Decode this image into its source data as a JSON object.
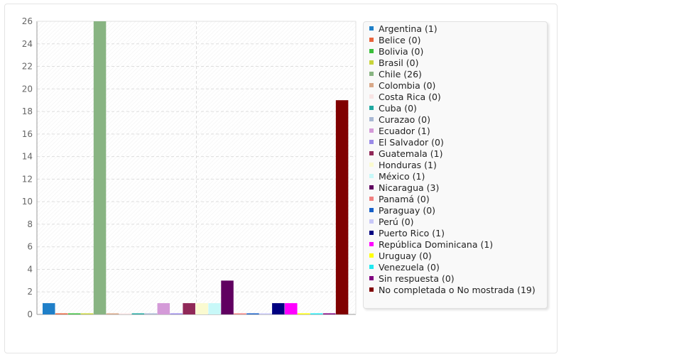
{
  "chart_data": {
    "type": "bar",
    "title": "",
    "xlabel": "",
    "ylabel": "",
    "ylim": [
      0,
      26
    ],
    "yticks": [
      0,
      2,
      4,
      6,
      8,
      10,
      12,
      14,
      16,
      18,
      20,
      22,
      24,
      26
    ],
    "grid": true,
    "legend_position": "right",
    "series": [
      {
        "label": "Argentina (1)",
        "value": 1,
        "color": "#1f7fc8"
      },
      {
        "label": "Belice (0)",
        "value": 0,
        "color": "#e8643c"
      },
      {
        "label": "Bolivia (0)",
        "value": 0,
        "color": "#3bbf3b"
      },
      {
        "label": "Brasil (0)",
        "value": 0,
        "color": "#c8d43a"
      },
      {
        "label": "Chile (26)",
        "value": 26,
        "color": "#88b482"
      },
      {
        "label": "Colombia (0)",
        "value": 0,
        "color": "#d8a888"
      },
      {
        "label": "Costa Rica (0)",
        "value": 0,
        "color": "#f8e4e4"
      },
      {
        "label": "Cuba (0)",
        "value": 0,
        "color": "#1fa8a0"
      },
      {
        "label": "Curazao (0)",
        "value": 0,
        "color": "#a8b8d4"
      },
      {
        "label": "Ecuador (1)",
        "value": 1,
        "color": "#d49ad8"
      },
      {
        "label": "El Salvador (0)",
        "value": 0,
        "color": "#9a8ae8"
      },
      {
        "label": "Guatemala (1)",
        "value": 1,
        "color": "#902858"
      },
      {
        "label": "Honduras (1)",
        "value": 1,
        "color": "#fafad0"
      },
      {
        "label": "México (1)",
        "value": 1,
        "color": "#c8f8f8"
      },
      {
        "label": "Nicaragua (3)",
        "value": 3,
        "color": "#600060"
      },
      {
        "label": "Panamá (0)",
        "value": 0,
        "color": "#f08080"
      },
      {
        "label": "Paraguay (0)",
        "value": 0,
        "color": "#1860c8"
      },
      {
        "label": "Perú (0)",
        "value": 0,
        "color": "#c8c8f8"
      },
      {
        "label": "Puerto Rico (1)",
        "value": 1,
        "color": "#000080"
      },
      {
        "label": "República Dominicana (1)",
        "value": 1,
        "color": "#ff00ff"
      },
      {
        "label": "Uruguay (0)",
        "value": 0,
        "color": "#ffff00"
      },
      {
        "label": "Venezuela (0)",
        "value": 0,
        "color": "#20e8f0"
      },
      {
        "label": "Sin respuesta (0)",
        "value": 0,
        "color": "#800080"
      },
      {
        "label": "No completada o No mostrada (19)",
        "value": 19,
        "color": "#800000"
      }
    ]
  }
}
